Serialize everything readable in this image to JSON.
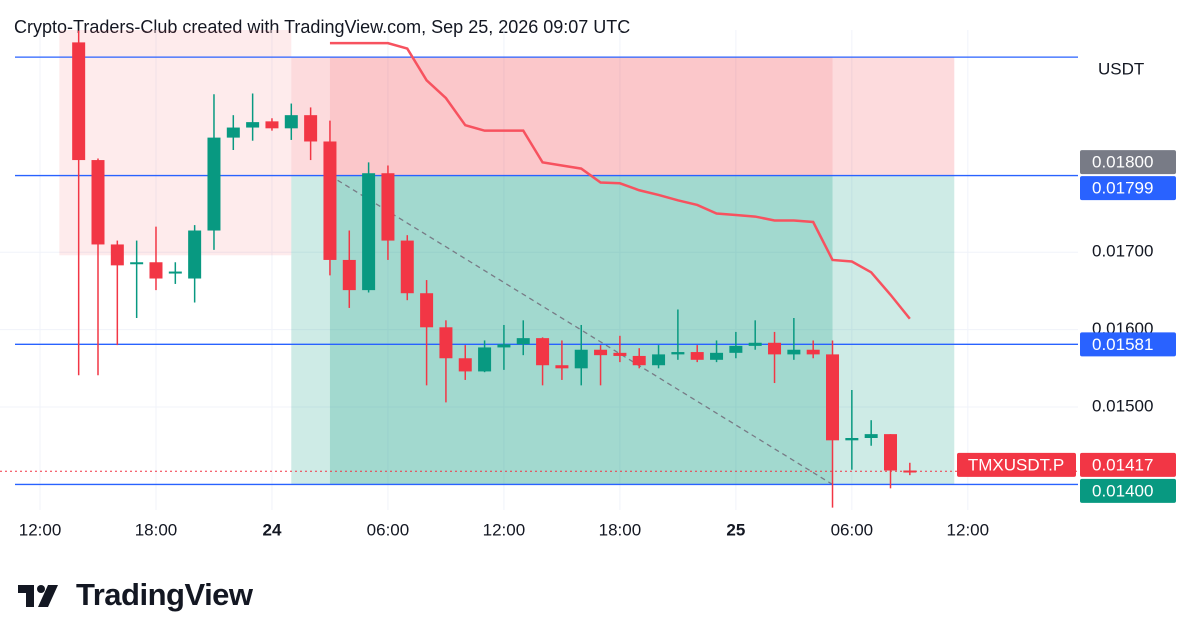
{
  "header": "Crypto-Traders-Club created with TradingView.com, Sep 25, 2026 09:07 UTC",
  "brand": "TradingView",
  "chart_data": {
    "type": "candlestick",
    "currency": "USDT",
    "symbol": "TMXUSDT.P",
    "up_color": "#089981",
    "down_color": "#f23645",
    "x": [
      2,
      3,
      4,
      5,
      6,
      7,
      8,
      9,
      10,
      11,
      12,
      13,
      14,
      15,
      16,
      17,
      18,
      19,
      20,
      21,
      22,
      23,
      24,
      25,
      26,
      27,
      28,
      29,
      30,
      31,
      32,
      33,
      34,
      35,
      36,
      37,
      38,
      39,
      40,
      41,
      42,
      43,
      44,
      45
    ],
    "open": [
      0.01971,
      0.01819,
      0.0171,
      0.01686,
      0.01687,
      0.01674,
      0.01666,
      0.01728,
      0.01848,
      0.01861,
      0.01869,
      0.0186,
      0.01877,
      0.01843,
      0.0169,
      0.01651,
      0.01802,
      0.01715,
      0.01647,
      0.01603,
      0.01563,
      0.01546,
      0.01577,
      0.01581,
      0.01589,
      0.01554,
      0.0155,
      0.01574,
      0.0157,
      0.01566,
      0.01554,
      0.01568,
      0.01571,
      0.01561,
      0.0157,
      0.01579,
      0.01583,
      0.01568,
      0.01574,
      0.01568,
      0.01457,
      0.0146,
      0.01465,
      0.01418
    ],
    "high": [
      0.01986,
      0.01821,
      0.01715,
      0.01715,
      0.01733,
      0.01687,
      0.01735,
      0.01904,
      0.01877,
      0.01905,
      0.01873,
      0.01892,
      0.01887,
      0.0187,
      0.01728,
      0.01816,
      0.01812,
      0.01722,
      0.01664,
      0.01612,
      0.0158,
      0.01586,
      0.01606,
      0.01612,
      0.0159,
      0.01586,
      0.01606,
      0.0158,
      0.01592,
      0.01576,
      0.0158,
      0.01626,
      0.0158,
      0.01586,
      0.01597,
      0.01612,
      0.01597,
      0.01615,
      0.01586,
      0.01586,
      0.01522,
      0.01483,
      0.01465,
      0.01428
    ],
    "low": [
      0.01541,
      0.01541,
      0.0158,
      0.01615,
      0.01651,
      0.01659,
      0.01635,
      0.01703,
      0.01832,
      0.01844,
      0.01857,
      0.01845,
      0.01819,
      0.0167,
      0.01628,
      0.01648,
      0.0169,
      0.01638,
      0.01528,
      0.01506,
      0.01535,
      0.01545,
      0.01548,
      0.01567,
      0.01528,
      0.01535,
      0.01528,
      0.01528,
      0.01558,
      0.0155,
      0.0155,
      0.01561,
      0.01558,
      0.01558,
      0.01563,
      0.01574,
      0.01531,
      0.01561,
      0.01563,
      0.0137,
      0.01419,
      0.0145,
      0.01395,
      0.01412
    ],
    "close": [
      0.01819,
      0.0171,
      0.01683,
      0.01687,
      0.01666,
      0.01675,
      0.01728,
      0.01848,
      0.01861,
      0.01868,
      0.0186,
      0.01877,
      0.01843,
      0.0169,
      0.01651,
      0.01802,
      0.01715,
      0.01647,
      0.01603,
      0.01563,
      0.01546,
      0.01577,
      0.01581,
      0.01589,
      0.01554,
      0.0155,
      0.01574,
      0.01567,
      0.01566,
      0.01554,
      0.01568,
      0.01571,
      0.01561,
      0.0157,
      0.01579,
      0.01583,
      0.01568,
      0.01574,
      0.01568,
      0.01457,
      0.0146,
      0.01465,
      0.01418,
      0.01417
    ],
    "overlay": {
      "color": "#f7525f",
      "x": [
        15,
        16,
        17,
        18,
        19,
        20,
        21,
        22,
        23,
        24,
        25,
        26,
        27,
        28,
        29,
        30,
        31,
        32,
        33,
        34,
        35,
        36,
        37,
        38,
        39,
        40,
        41,
        42,
        43,
        44,
        45
      ],
      "values": [
        0.0197,
        0.0197,
        0.0197,
        0.0197,
        0.01963,
        0.01922,
        0.01899,
        0.01864,
        0.01857,
        0.01857,
        0.01857,
        0.01816,
        0.01812,
        0.01808,
        0.0179,
        0.01789,
        0.0178,
        0.01774,
        0.01767,
        0.01761,
        0.0175,
        0.01748,
        0.01746,
        0.01741,
        0.01741,
        0.01739,
        0.0169,
        0.01688,
        0.01674,
        0.01645,
        0.01614
      ]
    },
    "position": {
      "x_range": [
        13,
        47.3
      ],
      "active_range": [
        15,
        41
      ],
      "stop": 0.01952,
      "entry": 0.01799,
      "target": 0.014
    },
    "earlier_zone": {
      "x_range": [
        1,
        13
      ],
      "price_range": [
        0.01696,
        0.01987
      ]
    },
    "hlines": {
      "color": "#2962ff",
      "values": [
        0.01952,
        0.01799,
        0.01581,
        0.014
      ]
    },
    "last_price": 0.01417,
    "badges": [
      {
        "value": 0.018,
        "label": "0.01800",
        "color": "#787b86"
      },
      {
        "value": 0.01799,
        "label": "0.01799",
        "color": "#2962ff"
      },
      {
        "value": 0.01581,
        "label": "0.01581",
        "color": "#2962ff"
      },
      {
        "value": 0.01417,
        "label": "0.01417",
        "color": "#f23645"
      },
      {
        "value": 0.014,
        "label": "0.01400",
        "color": "#089981"
      }
    ],
    "ylim": [
      0.01367,
      0.01987
    ],
    "yticks": [
      {
        "value": 0.015,
        "label": "0.01500"
      },
      {
        "value": 0.016,
        "label": "0.01600"
      },
      {
        "value": 0.017,
        "label": "0.01700"
      }
    ],
    "xlim": [
      -2.07,
      53.7
    ],
    "xticks": [
      {
        "value": 0,
        "label": "12:00"
      },
      {
        "value": 6,
        "label": "18:00"
      },
      {
        "value": 12,
        "label": "24"
      },
      {
        "value": 18,
        "label": "06:00"
      },
      {
        "value": 24,
        "label": "12:00"
      },
      {
        "value": 30,
        "label": "18:00"
      },
      {
        "value": 36,
        "label": "25"
      },
      {
        "value": 42,
        "label": "06:00"
      },
      {
        "value": 48,
        "label": "12:00"
      }
    ],
    "grid": true
  }
}
